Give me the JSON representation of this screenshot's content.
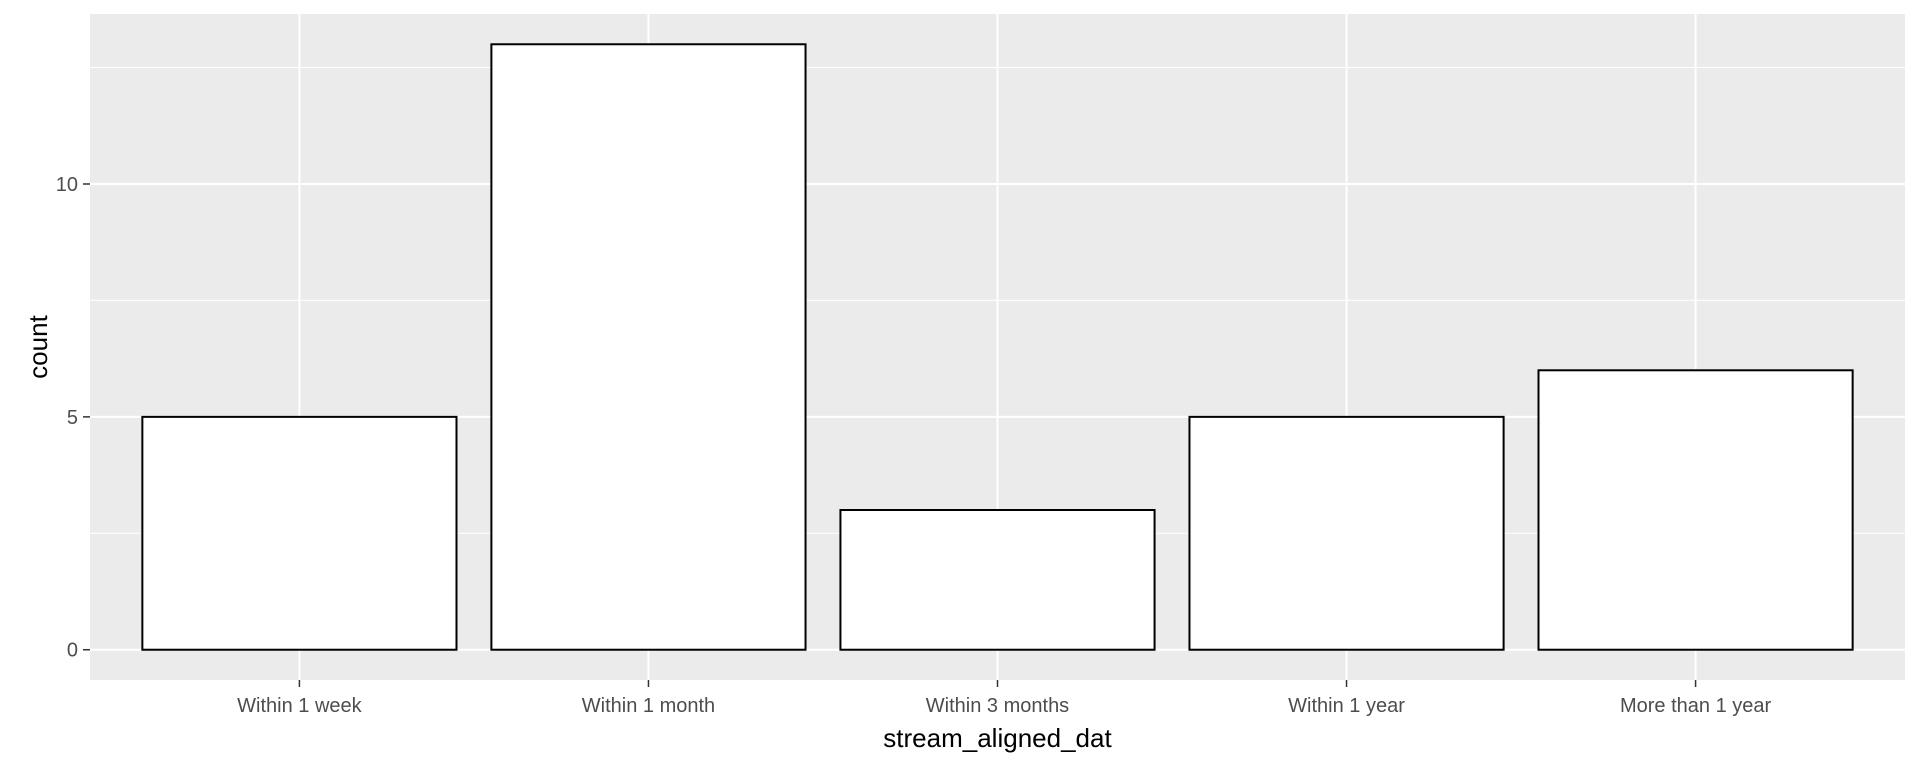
{
  "chart_data": {
    "type": "bar",
    "categories": [
      "Within 1 week",
      "Within 1 month",
      "Within 3 months",
      "Within 1 year",
      "More than 1 year"
    ],
    "values": [
      5,
      13,
      3,
      5,
      6
    ],
    "xlabel": "stream_aligned_dat",
    "ylabel": "count",
    "ylim": [
      -0.65,
      13.65
    ],
    "yticks": [
      0,
      5,
      10
    ],
    "grid": true,
    "colors": {
      "panel_background": "#ebebeb",
      "grid": "#ffffff",
      "bar_fill": "#ffffff",
      "bar_outline": "#000000",
      "tick_text": "#4d4d4d",
      "tick_mark": "#333333",
      "axis_title": "#000000"
    }
  }
}
